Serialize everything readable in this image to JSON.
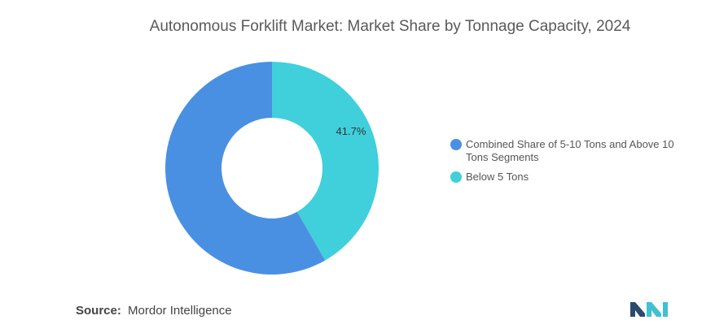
{
  "chart_data": {
    "type": "pie",
    "donut": true,
    "title": "Autonomous Forklift Market: Market Share by Tonnage Capacity, 2024",
    "categories": [
      "Combined Share of 5-10 Tons and Above 10 Tons Segments",
      "Below 5 Tons"
    ],
    "values": [
      58.3,
      41.7
    ],
    "data_labels": [
      "",
      "41.7%"
    ],
    "colors": [
      "#4a90e2",
      "#3fd0dc"
    ],
    "legend_position": "right"
  },
  "source": {
    "label": "Source:",
    "value": "Mordor Intelligence"
  },
  "logo": {
    "icon": "mordor-intelligence-logo",
    "colors": [
      "#2d4a6e",
      "#3fc1d0"
    ]
  }
}
